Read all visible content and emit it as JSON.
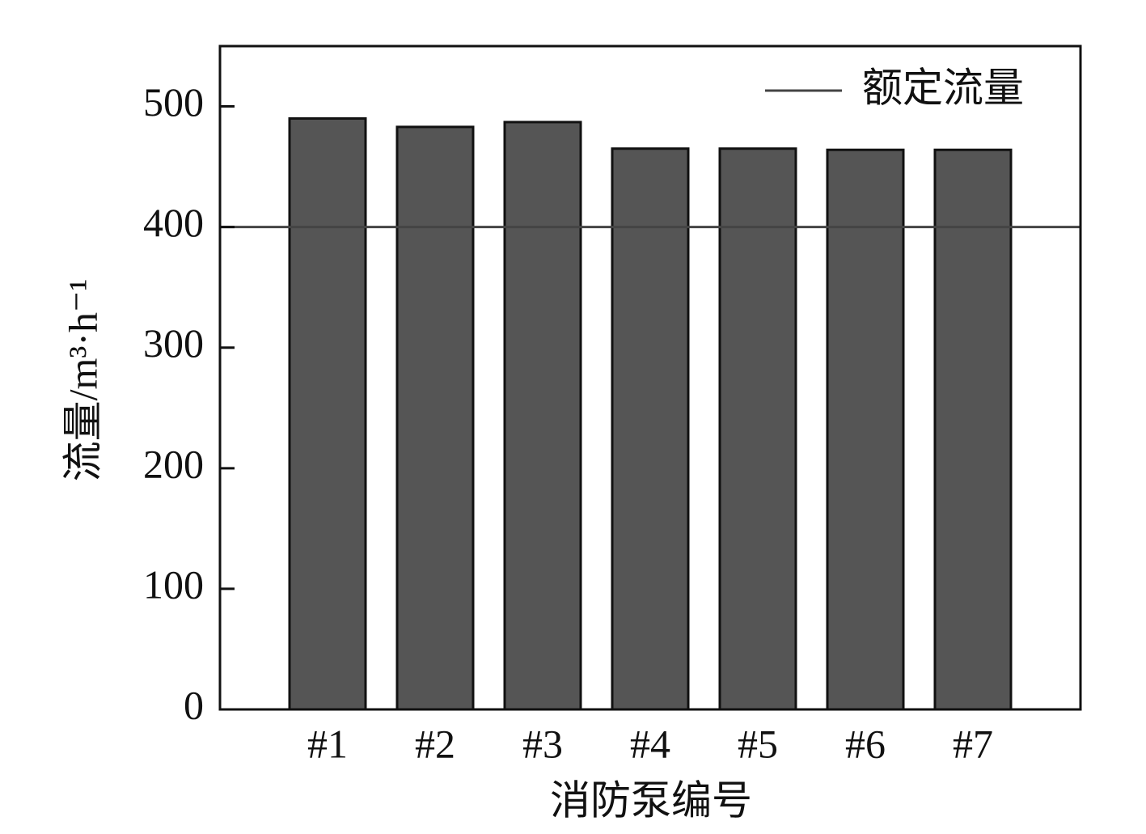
{
  "chart_data": {
    "type": "bar",
    "categories": [
      "#1",
      "#2",
      "#3",
      "#4",
      "#5",
      "#6",
      "#7"
    ],
    "values": [
      490,
      483,
      487,
      465,
      465,
      464,
      464
    ],
    "color": "#555555",
    "reference_line": {
      "name": "额定流量",
      "value": 400,
      "color": "#444444"
    },
    "x_label": "消防泵编号",
    "y_label": "流量/m³·h⁻¹",
    "ylim": [
      0,
      550
    ],
    "yticks": [
      0,
      100,
      200,
      300,
      400,
      500
    ],
    "legend": "upper right"
  }
}
